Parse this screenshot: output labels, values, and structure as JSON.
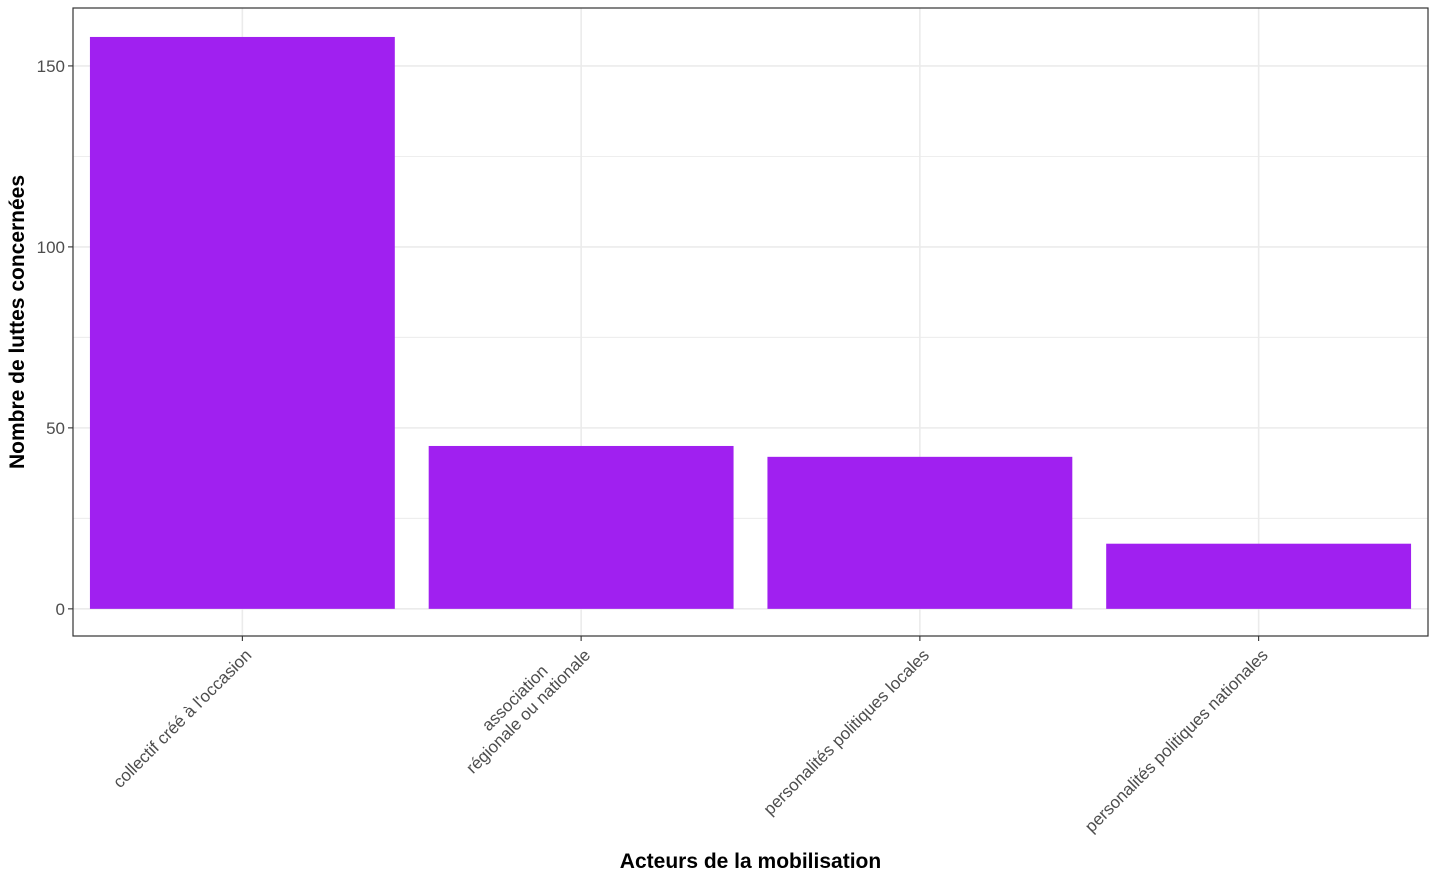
{
  "chart_data": {
    "type": "bar",
    "title": "",
    "xlabel": "Acteurs de la mobilisation",
    "ylabel": "Nombre de luttes concernées",
    "categories": [
      [
        "collectif créé à l'occasion"
      ],
      [
        "association",
        "régionale ou nationale"
      ],
      [
        "personalités politiques locales"
      ],
      [
        "personalités politiques nationales"
      ]
    ],
    "values": [
      158,
      45,
      42,
      18
    ],
    "ylim": [
      -7.5,
      166
    ],
    "yticks": [
      0,
      50,
      100,
      150
    ],
    "y_minor_ticks": [
      25,
      75,
      125
    ],
    "grid": true,
    "legend": "none",
    "colors": {
      "bar": "#a020f0",
      "grid": "#ebebeb",
      "panel_border": "#333333",
      "tick_text": "#4d4d4d"
    }
  }
}
